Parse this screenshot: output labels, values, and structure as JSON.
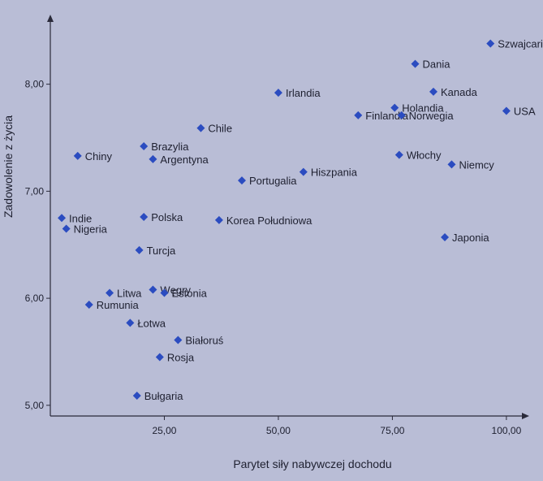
{
  "chart_data": {
    "type": "scatter",
    "title": "",
    "xlabel": "Parytet siły nabywczej dochodu",
    "ylabel": "Zadowolenie z życia",
    "xlim": [
      0,
      105
    ],
    "ylim": [
      4.9,
      8.65
    ],
    "xticks": [
      "25,00",
      "50,00",
      "75,00",
      "100,00"
    ],
    "xtick_values": [
      25,
      50,
      75,
      100
    ],
    "yticks": [
      "5,00",
      "6,00",
      "7,00",
      "8,00"
    ],
    "ytick_values": [
      5,
      6,
      7,
      8
    ],
    "grid": false,
    "marker_color": "#2b4cc0",
    "axis_color": "#2a2a3a",
    "background": "#b9bdd6",
    "points": [
      {
        "label": "Szwajcaria",
        "x": 96.5,
        "y": 8.38
      },
      {
        "label": "Dania",
        "x": 80.0,
        "y": 8.19
      },
      {
        "label": "Kanada",
        "x": 84.0,
        "y": 7.93
      },
      {
        "label": "Irlandia",
        "x": 50.0,
        "y": 7.92
      },
      {
        "label": "Holandia",
        "x": 75.5,
        "y": 7.78
      },
      {
        "label": "USA",
        "x": 100.0,
        "y": 7.75
      },
      {
        "label": "Finlandia",
        "x": 67.5,
        "y": 7.71
      },
      {
        "label": "Norwegia",
        "x": 77.0,
        "y": 7.71
      },
      {
        "label": "Chile",
        "x": 33.0,
        "y": 7.59
      },
      {
        "label": "Brazylia",
        "x": 20.5,
        "y": 7.42
      },
      {
        "label": "Chiny",
        "x": 6.0,
        "y": 7.33
      },
      {
        "label": "Argentyna",
        "x": 22.5,
        "y": 7.3
      },
      {
        "label": "Włochy",
        "x": 76.5,
        "y": 7.34
      },
      {
        "label": "Niemcy",
        "x": 88.0,
        "y": 7.25
      },
      {
        "label": "Hiszpania",
        "x": 55.5,
        "y": 7.18
      },
      {
        "label": "Portugalia",
        "x": 42.0,
        "y": 7.1
      },
      {
        "label": "Indie",
        "x": 2.5,
        "y": 6.75
      },
      {
        "label": "Polska",
        "x": 20.5,
        "y": 6.76
      },
      {
        "label": "Korea Południowa",
        "x": 37.0,
        "y": 6.73
      },
      {
        "label": "Nigeria",
        "x": 3.5,
        "y": 6.65
      },
      {
        "label": "Japonia",
        "x": 86.5,
        "y": 6.57
      },
      {
        "label": "Turcja",
        "x": 19.5,
        "y": 6.45
      },
      {
        "label": "Litwa",
        "x": 13.0,
        "y": 6.05
      },
      {
        "label": "Węgry",
        "x": 22.5,
        "y": 6.08
      },
      {
        "label": "Estonia",
        "x": 25.0,
        "y": 6.05
      },
      {
        "label": "Rumunia",
        "x": 8.5,
        "y": 5.94
      },
      {
        "label": "Łotwa",
        "x": 17.5,
        "y": 5.77
      },
      {
        "label": "Białoruś",
        "x": 28.0,
        "y": 5.61
      },
      {
        "label": "Rosja",
        "x": 24.0,
        "y": 5.45
      },
      {
        "label": "Bułgaria",
        "x": 19.0,
        "y": 5.09
      }
    ]
  }
}
